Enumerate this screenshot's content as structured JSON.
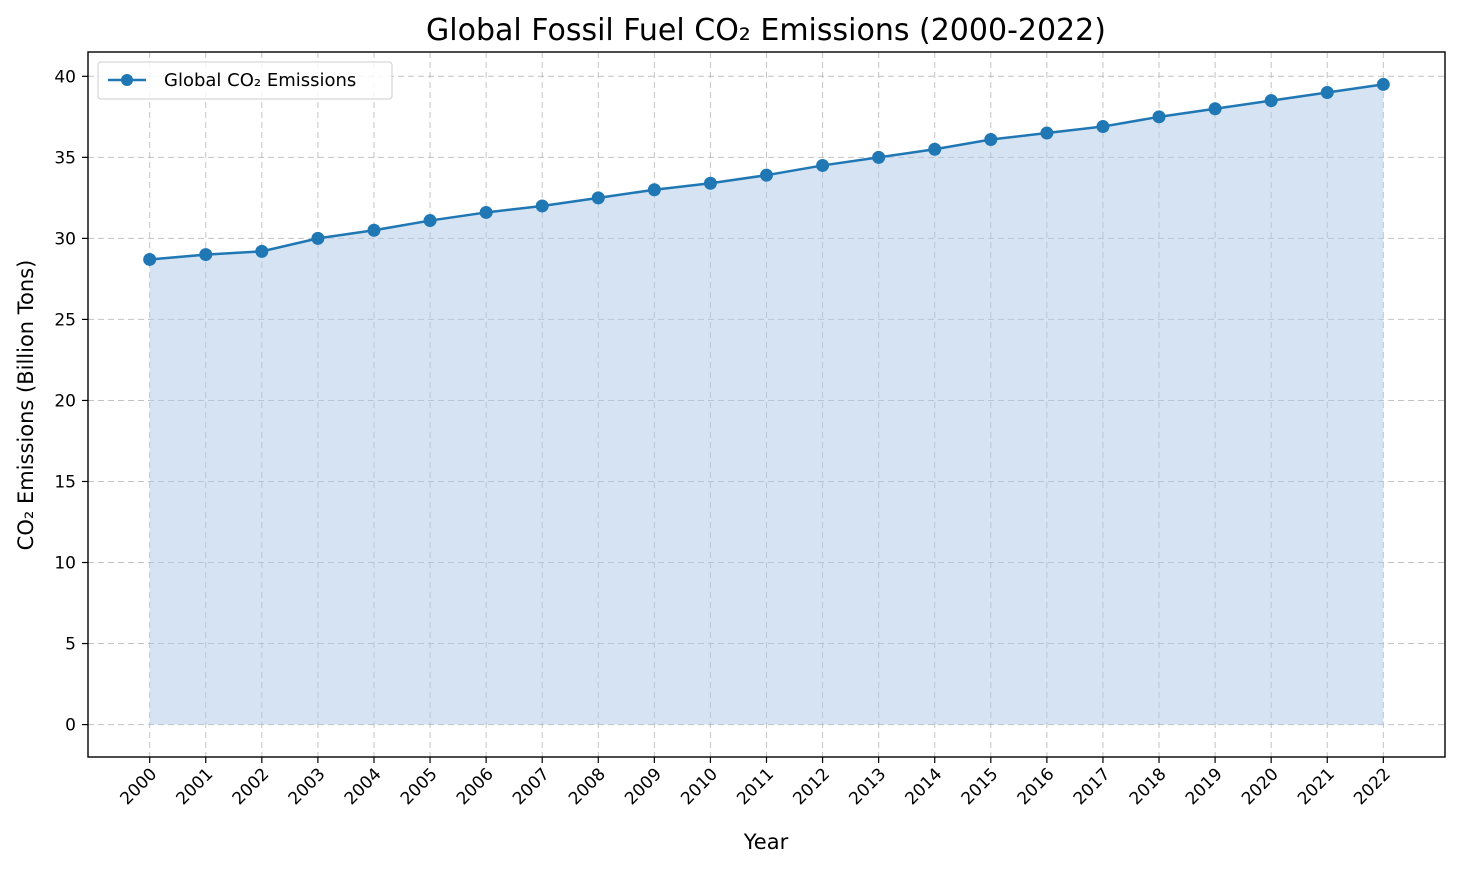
{
  "chart_data": {
    "type": "line",
    "title": "Global Fossil Fuel CO₂ Emissions (2000-2022)",
    "xlabel": "Year",
    "ylabel": "CO₂ Emissions (Billion Tons)",
    "x": [
      2000,
      2001,
      2002,
      2003,
      2004,
      2005,
      2006,
      2007,
      2008,
      2009,
      2010,
      2011,
      2012,
      2013,
      2014,
      2015,
      2016,
      2017,
      2018,
      2019,
      2020,
      2021,
      2022
    ],
    "x_tick_labels": [
      "2000",
      "2001",
      "2002",
      "2003",
      "2004",
      "2005",
      "2006",
      "2007",
      "2008",
      "2009",
      "2010",
      "2011",
      "2012",
      "2013",
      "2014",
      "2015",
      "2016",
      "2017",
      "2018",
      "2019",
      "2020",
      "2021",
      "2022"
    ],
    "series": [
      {
        "name": "Global CO₂ Emissions",
        "values": [
          28.7,
          29.0,
          29.2,
          30.0,
          30.5,
          31.1,
          31.6,
          32.0,
          32.5,
          33.0,
          33.4,
          33.9,
          34.5,
          35.0,
          35.5,
          36.1,
          36.5,
          36.9,
          37.5,
          38.0,
          38.5,
          39.0,
          39.5
        ],
        "color": "#1f77b4",
        "marker": "circle",
        "fill_under": true,
        "fill_color": "#aec7e8"
      }
    ],
    "y_ticks": [
      0,
      5,
      10,
      15,
      20,
      25,
      30,
      35,
      40
    ],
    "ylim": [
      -2.0,
      41.5
    ],
    "xlim": [
      1998.9,
      2023.1
    ],
    "grid": true,
    "legend_position": "upper-left"
  }
}
